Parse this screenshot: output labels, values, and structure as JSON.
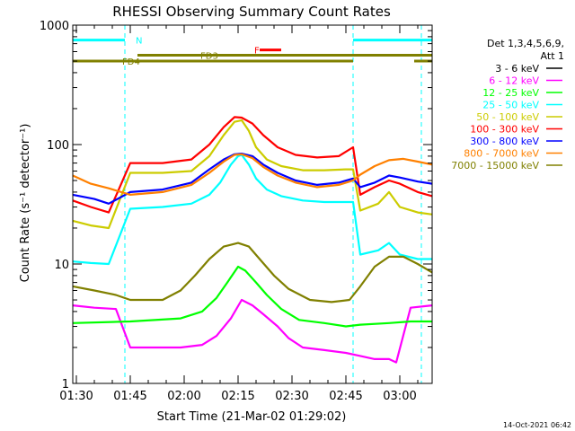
{
  "chart_data": {
    "type": "line",
    "title": "RHESSI Observing Summary Count Rates",
    "xlabel": "Start Time (21-Mar-02 01:29:02)",
    "ylabel": "Count Rate (s⁻¹ detector⁻¹)",
    "yscale": "log",
    "ylim": [
      1,
      1000
    ],
    "xlim_minutes": [
      0,
      100
    ],
    "x_ticks": [
      {
        "label": "01:30",
        "t": 1
      },
      {
        "label": "01:45",
        "t": 16
      },
      {
        "label": "02:00",
        "t": 31
      },
      {
        "label": "02:15",
        "t": 46
      },
      {
        "label": "02:30",
        "t": 61
      },
      {
        "label": "02:45",
        "t": 76
      },
      {
        "label": "03:00",
        "t": 91
      }
    ],
    "y_ticks": [
      {
        "label": "1",
        "v": 1
      },
      {
        "label": "10",
        "v": 10
      },
      {
        "label": "100",
        "v": 100
      },
      {
        "label": "1000",
        "v": 1000
      }
    ],
    "legend_header": [
      "Det 1,3,4,5,6,9,",
      "Att 1"
    ],
    "legend_position": "right",
    "series": [
      {
        "name": "3 - 6 keV",
        "color": "#000000",
        "points": []
      },
      {
        "name": "6 - 12 keV",
        "color": "#ff00ff",
        "points": [
          [
            0,
            4.5
          ],
          [
            6,
            4.3
          ],
          [
            12,
            4.2
          ],
          [
            16,
            2.0
          ],
          [
            30,
            2.0
          ],
          [
            36,
            2.1
          ],
          [
            40,
            2.5
          ],
          [
            44,
            3.5
          ],
          [
            47,
            5.0
          ],
          [
            50,
            4.5
          ],
          [
            53,
            3.8
          ],
          [
            57,
            3.0
          ],
          [
            60,
            2.4
          ],
          [
            64,
            2.0
          ],
          [
            70,
            1.9
          ],
          [
            76,
            1.8
          ],
          [
            80,
            1.7
          ],
          [
            84,
            1.6
          ],
          [
            88,
            1.6
          ],
          [
            90,
            1.5
          ],
          [
            94,
            4.3
          ],
          [
            100,
            4.5
          ]
        ]
      },
      {
        "name": "12 - 25 keV",
        "color": "#00ff00",
        "points": [
          [
            0,
            3.2
          ],
          [
            16,
            3.3
          ],
          [
            30,
            3.5
          ],
          [
            36,
            4.0
          ],
          [
            40,
            5.2
          ],
          [
            43,
            7.0
          ],
          [
            46,
            9.5
          ],
          [
            48,
            8.8
          ],
          [
            51,
            7.0
          ],
          [
            54,
            5.5
          ],
          [
            58,
            4.2
          ],
          [
            63,
            3.4
          ],
          [
            70,
            3.2
          ],
          [
            76,
            3.0
          ],
          [
            80,
            3.1
          ],
          [
            88,
            3.2
          ],
          [
            94,
            3.3
          ],
          [
            100,
            3.3
          ]
        ]
      },
      {
        "name": "25 - 50 keV",
        "color": "#00ffff",
        "points": [
          [
            0,
            10.5
          ],
          [
            5,
            10.2
          ],
          [
            10,
            10.0
          ],
          [
            16,
            29
          ],
          [
            25,
            30
          ],
          [
            33,
            32
          ],
          [
            38,
            38
          ],
          [
            41,
            48
          ],
          [
            44,
            68
          ],
          [
            46,
            80
          ],
          [
            47,
            82
          ],
          [
            49,
            68
          ],
          [
            51,
            52
          ],
          [
            54,
            42
          ],
          [
            58,
            37
          ],
          [
            64,
            34
          ],
          [
            70,
            33
          ],
          [
            76,
            33
          ],
          [
            78,
            33
          ],
          [
            80,
            12
          ],
          [
            85,
            13
          ],
          [
            88,
            15
          ],
          [
            91,
            12
          ],
          [
            96,
            11
          ],
          [
            100,
            11
          ]
        ]
      },
      {
        "name": "50 - 100 keV",
        "color": "#cccc00",
        "points": [
          [
            0,
            23
          ],
          [
            5,
            21
          ],
          [
            10,
            20
          ],
          [
            16,
            58
          ],
          [
            25,
            58
          ],
          [
            33,
            60
          ],
          [
            38,
            80
          ],
          [
            42,
            120
          ],
          [
            45,
            155
          ],
          [
            47,
            160
          ],
          [
            49,
            130
          ],
          [
            51,
            95
          ],
          [
            54,
            75
          ],
          [
            58,
            66
          ],
          [
            64,
            61
          ],
          [
            70,
            61
          ],
          [
            76,
            62
          ],
          [
            78,
            62
          ],
          [
            80,
            28
          ],
          [
            85,
            32
          ],
          [
            88,
            40
          ],
          [
            91,
            30
          ],
          [
            96,
            27
          ],
          [
            100,
            26
          ]
        ]
      },
      {
        "name": "100 - 300 keV",
        "color": "#ff0000",
        "points": [
          [
            0,
            34
          ],
          [
            5,
            30
          ],
          [
            10,
            27
          ],
          [
            16,
            70
          ],
          [
            25,
            70
          ],
          [
            33,
            75
          ],
          [
            38,
            100
          ],
          [
            42,
            140
          ],
          [
            45,
            170
          ],
          [
            47,
            168
          ],
          [
            50,
            150
          ],
          [
            53,
            120
          ],
          [
            57,
            95
          ],
          [
            62,
            82
          ],
          [
            68,
            78
          ],
          [
            74,
            80
          ],
          [
            78,
            95
          ],
          [
            80,
            38
          ],
          [
            84,
            44
          ],
          [
            88,
            50
          ],
          [
            91,
            47
          ],
          [
            96,
            40
          ],
          [
            100,
            37
          ]
        ]
      },
      {
        "name": "300 - 800 keV",
        "color": "#0000ff",
        "points": [
          [
            0,
            38
          ],
          [
            6,
            35
          ],
          [
            10,
            32
          ],
          [
            16,
            40
          ],
          [
            25,
            42
          ],
          [
            33,
            48
          ],
          [
            38,
            62
          ],
          [
            42,
            75
          ],
          [
            45,
            83
          ],
          [
            47,
            84
          ],
          [
            50,
            80
          ],
          [
            53,
            68
          ],
          [
            57,
            58
          ],
          [
            62,
            50
          ],
          [
            68,
            46
          ],
          [
            74,
            48
          ],
          [
            78,
            52
          ],
          [
            80,
            44
          ],
          [
            84,
            48
          ],
          [
            88,
            55
          ],
          [
            91,
            53
          ],
          [
            96,
            49
          ],
          [
            100,
            47
          ]
        ]
      },
      {
        "name": "800 - 7000 keV",
        "color": "#ff8000",
        "points": [
          [
            0,
            55
          ],
          [
            5,
            47
          ],
          [
            10,
            43
          ],
          [
            16,
            38
          ],
          [
            25,
            40
          ],
          [
            33,
            46
          ],
          [
            38,
            58
          ],
          [
            42,
            72
          ],
          [
            45,
            82
          ],
          [
            47,
            83
          ],
          [
            50,
            77
          ],
          [
            53,
            65
          ],
          [
            57,
            55
          ],
          [
            62,
            48
          ],
          [
            68,
            44
          ],
          [
            74,
            46
          ],
          [
            78,
            50
          ],
          [
            80,
            56
          ],
          [
            84,
            66
          ],
          [
            88,
            74
          ],
          [
            92,
            76
          ],
          [
            96,
            72
          ],
          [
            100,
            68
          ]
        ]
      },
      {
        "name": "7000 - 15000 keV",
        "color": "#808000",
        "points": [
          [
            0,
            6.5
          ],
          [
            6,
            6.0
          ],
          [
            12,
            5.5
          ],
          [
            16,
            5.0
          ],
          [
            25,
            5.0
          ],
          [
            30,
            6.0
          ],
          [
            34,
            8.0
          ],
          [
            38,
            11
          ],
          [
            42,
            14
          ],
          [
            46,
            15
          ],
          [
            49,
            14
          ],
          [
            52,
            11
          ],
          [
            56,
            8.0
          ],
          [
            60,
            6.2
          ],
          [
            66,
            5.0
          ],
          [
            72,
            4.8
          ],
          [
            77,
            5.0
          ],
          [
            80,
            6.5
          ],
          [
            84,
            9.5
          ],
          [
            88,
            11.5
          ],
          [
            92,
            11.5
          ],
          [
            96,
            10
          ],
          [
            100,
            8.5
          ]
        ]
      }
    ],
    "flag_bars": [
      {
        "label": "N",
        "color": "#00ffff",
        "segments": [
          [
            0,
            14.5
          ],
          [
            78,
            100
          ]
        ],
        "v": 750
      },
      {
        "label": "F",
        "color": "#ff0000",
        "segments": [
          [
            52,
            58
          ]
        ],
        "v": 620
      },
      {
        "label": "FD3",
        "color": "#808000",
        "segments": [
          [
            18,
            100
          ]
        ],
        "v": 560
      },
      {
        "label": "FD4",
        "color": "#808000",
        "segments": [
          [
            0,
            78
          ],
          [
            95,
            100
          ]
        ],
        "v": 500
      }
    ],
    "vlines": [
      {
        "t": 14.5,
        "color": "#00ffff",
        "style": "dashed"
      },
      {
        "t": 78,
        "color": "#00ffff",
        "style": "dashed"
      },
      {
        "t": 97,
        "color": "#00ffff",
        "style": "dashed"
      }
    ]
  },
  "footer_timestamp": "14-Oct-2021 06:42"
}
